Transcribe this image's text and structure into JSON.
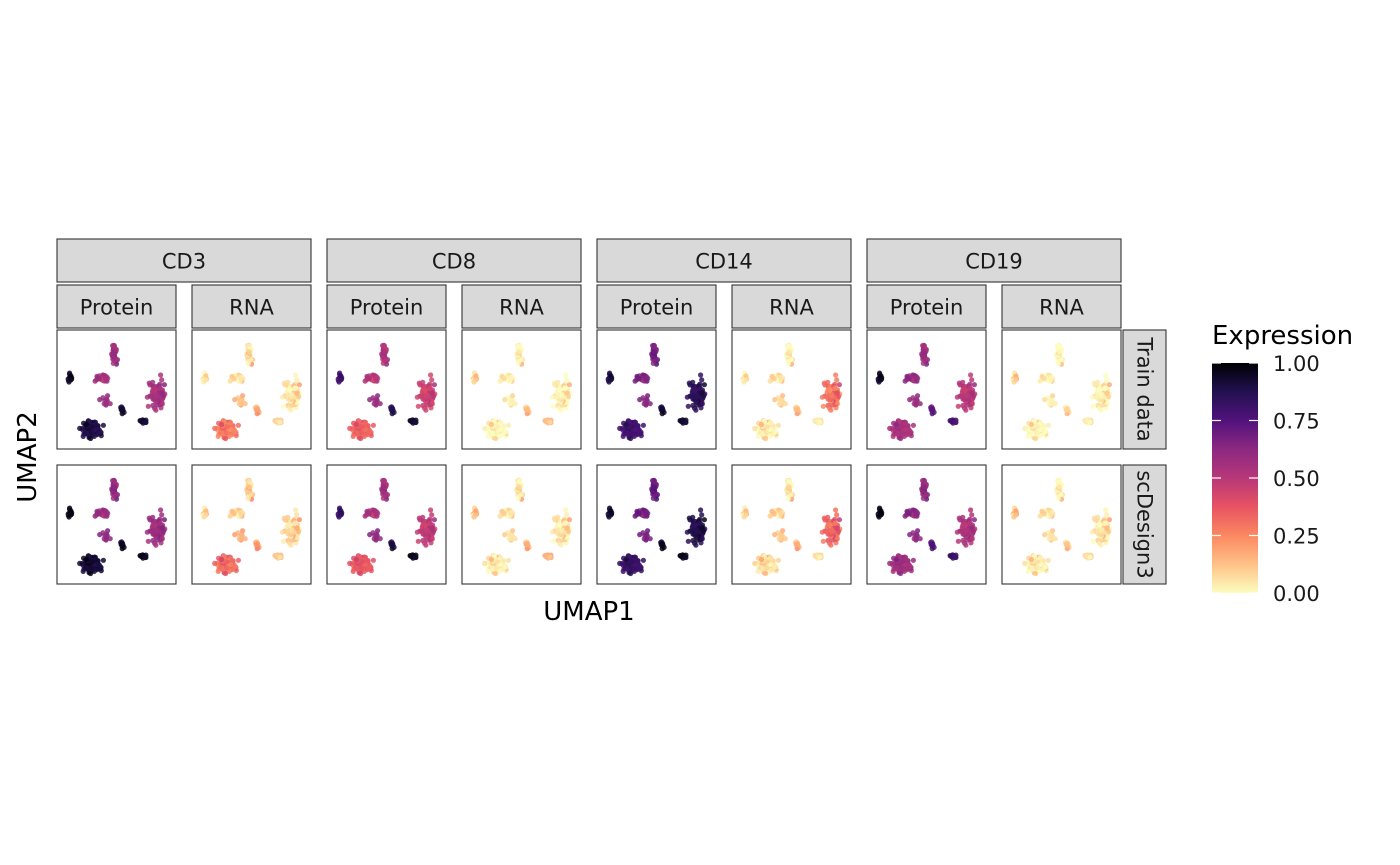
{
  "chart_data": {
    "type": "scatter",
    "subtype": "faceted UMAP embedding colored by scaled expression",
    "xlabel": "UMAP1",
    "ylabel": "UMAP2",
    "genes": [
      "CD3",
      "CD8",
      "CD14",
      "CD19"
    ],
    "modalities": [
      "Protein",
      "RNA"
    ],
    "rows": [
      "Train data",
      "scDesign3"
    ],
    "legend": {
      "title": "Expression",
      "placement": "right",
      "colormap": "magma (reversed)",
      "range": [
        0,
        1
      ],
      "ticks": [
        1.0,
        0.75,
        0.5,
        0.25,
        0.0
      ],
      "tick_labels": [
        "1.00",
        "0.75",
        "0.50",
        "0.25",
        "0.00"
      ],
      "colors": [
        "#fcfdbf",
        "#fec287",
        "#fb8861",
        "#e85362",
        "#b73779",
        "#8c2981",
        "#51127c",
        "#221150",
        "#000004"
      ]
    },
    "grid": false,
    "clusters": [
      {
        "name": "big-bottom-left",
        "x": 0.28,
        "y": 0.14
      },
      {
        "name": "big-right",
        "x": 0.87,
        "y": 0.46
      },
      {
        "name": "top-strand",
        "x": 0.48,
        "y": 0.82
      },
      {
        "name": "upper-middle",
        "x": 0.37,
        "y": 0.6
      },
      {
        "name": "left-small",
        "x": 0.08,
        "y": 0.6
      },
      {
        "name": "center-small",
        "x": 0.55,
        "y": 0.32
      },
      {
        "name": "right-small",
        "x": 0.73,
        "y": 0.22
      },
      {
        "name": "mid-dots",
        "x": 0.4,
        "y": 0.4
      }
    ],
    "cluster_expression": {
      "CD3": {
        "Protein": [
          0.9,
          0.55,
          0.6,
          0.55,
          0.95,
          0.9,
          0.95,
          0.6
        ],
        "RNA": [
          0.3,
          0.05,
          0.1,
          0.05,
          0.05,
          0.15,
          0.1,
          0.15
        ]
      },
      "CD8": {
        "Protein": [
          0.35,
          0.45,
          0.55,
          0.5,
          0.8,
          0.85,
          0.95,
          0.6
        ],
        "RNA": [
          0.02,
          0.02,
          0.05,
          0.02,
          0.1,
          0.1,
          0.15,
          0.05
        ]
      },
      "CD14": {
        "Protein": [
          0.8,
          0.85,
          0.7,
          0.65,
          0.9,
          0.9,
          0.95,
          0.65
        ],
        "RNA": [
          0.05,
          0.3,
          0.05,
          0.05,
          0.05,
          0.1,
          0.05,
          0.1
        ]
      },
      "CD19": {
        "Protein": [
          0.55,
          0.5,
          0.6,
          0.6,
          0.95,
          0.7,
          0.8,
          0.6
        ],
        "RNA": [
          0.02,
          0.02,
          0.02,
          0.02,
          0.1,
          0.05,
          0.05,
          0.05
        ]
      }
    }
  }
}
